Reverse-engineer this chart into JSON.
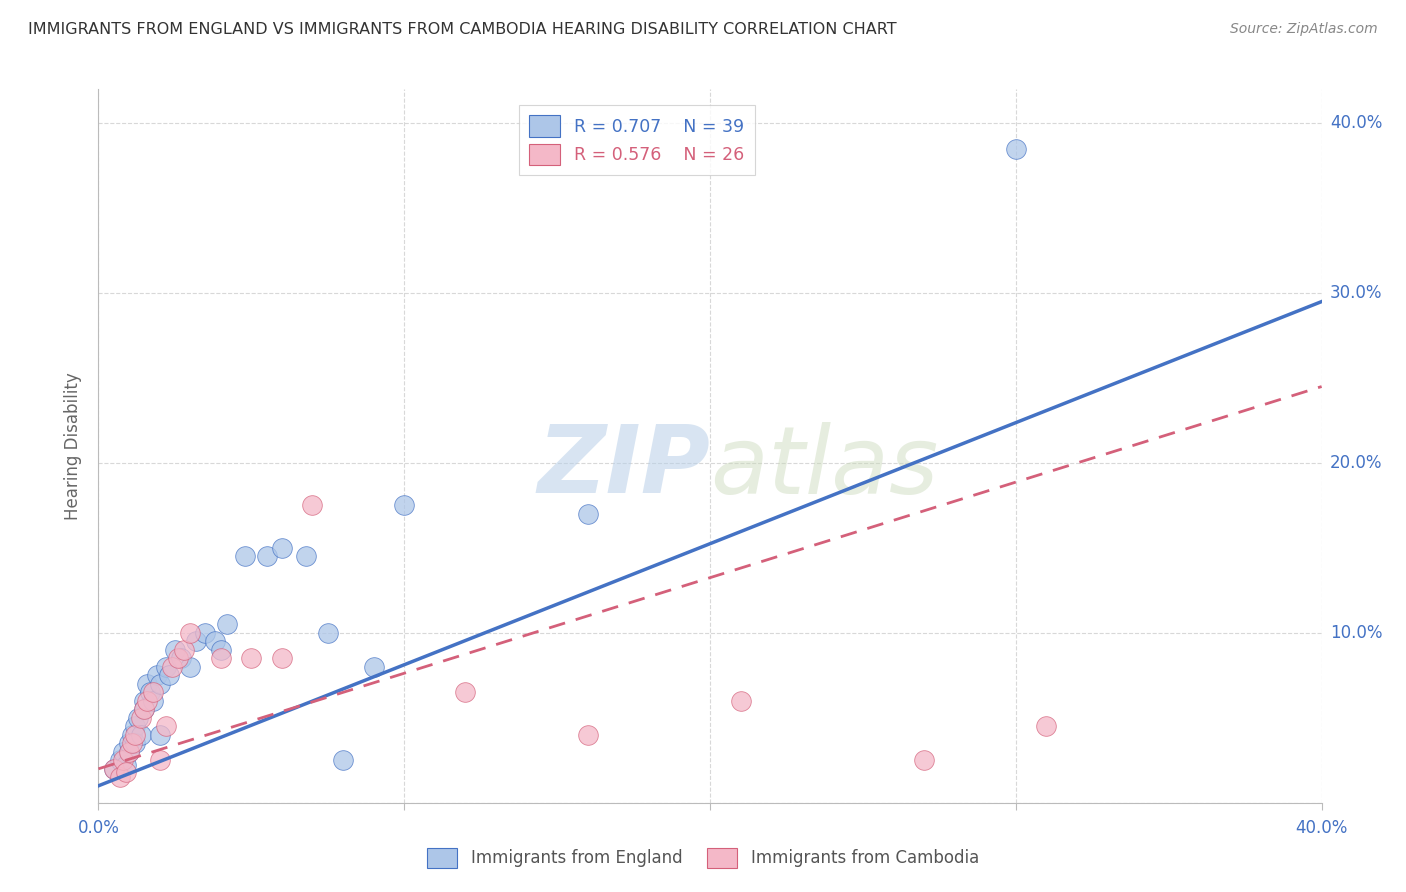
{
  "title": "IMMIGRANTS FROM ENGLAND VS IMMIGRANTS FROM CAMBODIA HEARING DISABILITY CORRELATION CHART",
  "source": "Source: ZipAtlas.com",
  "ylabel": "Hearing Disability",
  "xlim": [
    0.0,
    0.4
  ],
  "ylim": [
    0.0,
    0.42
  ],
  "england_color": "#adc6e8",
  "england_line_color": "#4472c4",
  "cambodia_color": "#f4b8c8",
  "cambodia_line_color": "#d4607a",
  "england_R": 0.707,
  "england_N": 39,
  "cambodia_R": 0.576,
  "cambodia_N": 26,
  "england_x": [
    0.005,
    0.007,
    0.008,
    0.009,
    0.01,
    0.01,
    0.011,
    0.012,
    0.012,
    0.013,
    0.014,
    0.015,
    0.015,
    0.016,
    0.017,
    0.018,
    0.019,
    0.02,
    0.02,
    0.022,
    0.023,
    0.025,
    0.027,
    0.03,
    0.032,
    0.035,
    0.038,
    0.04,
    0.042,
    0.048,
    0.055,
    0.06,
    0.068,
    0.075,
    0.08,
    0.09,
    0.1,
    0.16,
    0.3
  ],
  "england_y": [
    0.02,
    0.025,
    0.03,
    0.022,
    0.03,
    0.035,
    0.04,
    0.045,
    0.035,
    0.05,
    0.04,
    0.06,
    0.055,
    0.07,
    0.065,
    0.06,
    0.075,
    0.04,
    0.07,
    0.08,
    0.075,
    0.09,
    0.085,
    0.08,
    0.095,
    0.1,
    0.095,
    0.09,
    0.105,
    0.145,
    0.145,
    0.15,
    0.145,
    0.1,
    0.025,
    0.08,
    0.175,
    0.17,
    0.385
  ],
  "cambodia_x": [
    0.005,
    0.007,
    0.008,
    0.009,
    0.01,
    0.011,
    0.012,
    0.014,
    0.015,
    0.016,
    0.018,
    0.02,
    0.022,
    0.024,
    0.026,
    0.028,
    0.03,
    0.04,
    0.05,
    0.06,
    0.07,
    0.12,
    0.16,
    0.21,
    0.27,
    0.31
  ],
  "cambodia_y": [
    0.02,
    0.015,
    0.025,
    0.018,
    0.03,
    0.035,
    0.04,
    0.05,
    0.055,
    0.06,
    0.065,
    0.025,
    0.045,
    0.08,
    0.085,
    0.09,
    0.1,
    0.085,
    0.085,
    0.085,
    0.175,
    0.065,
    0.04,
    0.06,
    0.025,
    0.045
  ],
  "eng_line_x0": 0.0,
  "eng_line_y0": 0.01,
  "eng_line_x1": 0.4,
  "eng_line_y1": 0.295,
  "cam_line_x0": 0.0,
  "cam_line_y0": 0.02,
  "cam_line_x1": 0.4,
  "cam_line_y1": 0.245,
  "watermark_zip": "ZIP",
  "watermark_atlas": "atlas",
  "background_color": "#ffffff",
  "grid_color": "#d8d8d8",
  "ytick_vals": [
    0.1,
    0.2,
    0.3,
    0.4
  ],
  "ytick_labels": [
    "10.0%",
    "20.0%",
    "30.0%",
    "40.0%"
  ]
}
